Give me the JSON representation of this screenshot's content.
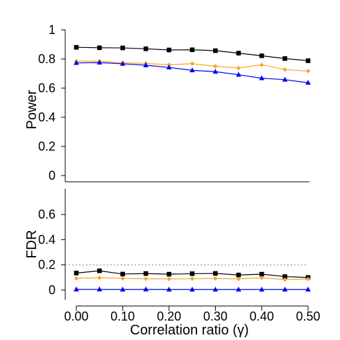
{
  "chart_data": [
    {
      "type": "line",
      "ylabel": "Power",
      "ylim": [
        0,
        1
      ],
      "yticks": [
        "0",
        "0.2",
        "0.4",
        "0.6",
        "0.8",
        "1"
      ],
      "x": [
        0.0,
        0.05,
        0.1,
        0.15,
        0.2,
        0.25,
        0.3,
        0.35,
        0.4,
        0.45,
        0.5
      ],
      "series": [
        {
          "marker": "square",
          "color": "#000000",
          "values": [
            0.88,
            0.877,
            0.876,
            0.87,
            0.862,
            0.863,
            0.857,
            0.84,
            0.822,
            0.803,
            0.788
          ]
        },
        {
          "marker": "diamond",
          "color": "#f5a623",
          "values": [
            0.785,
            0.785,
            0.773,
            0.77,
            0.76,
            0.768,
            0.75,
            0.738,
            0.76,
            0.727,
            0.717
          ]
        },
        {
          "marker": "triangle",
          "color": "#0000ee",
          "values": [
            0.773,
            0.775,
            0.767,
            0.757,
            0.742,
            0.722,
            0.713,
            0.692,
            0.668,
            0.658,
            0.637
          ]
        }
      ],
      "grid": false
    },
    {
      "type": "line",
      "xlabel": "Correlation ratio (γ)",
      "ylabel": "FDR",
      "ylim": [
        0,
        0.7
      ],
      "yticks": [
        "0",
        "0.2",
        "0.4",
        "0.6"
      ],
      "xticks": [
        "0.00",
        "0.10",
        "0.20",
        "0.30",
        "0.40",
        "0.50"
      ],
      "x": [
        0.0,
        0.05,
        0.1,
        0.15,
        0.2,
        0.25,
        0.3,
        0.35,
        0.4,
        0.45,
        0.5
      ],
      "reference_line": {
        "y": 0.2,
        "style": "dotted",
        "color": "#999999"
      },
      "series": [
        {
          "marker": "square",
          "color": "#000000",
          "values": [
            0.135,
            0.153,
            0.127,
            0.131,
            0.126,
            0.13,
            0.132,
            0.12,
            0.126,
            0.107,
            0.1
          ]
        },
        {
          "marker": "diamond",
          "color": "#f5a623",
          "values": [
            0.093,
            0.097,
            0.092,
            0.09,
            0.088,
            0.09,
            0.092,
            0.088,
            0.097,
            0.083,
            0.088
          ]
        },
        {
          "marker": "triangle",
          "color": "#0000ee",
          "values": [
            0.005,
            0.005,
            0.004,
            0.005,
            0.004,
            0.004,
            0.004,
            0.004,
            0.004,
            0.004,
            0.004
          ]
        }
      ],
      "grid": false
    }
  ]
}
